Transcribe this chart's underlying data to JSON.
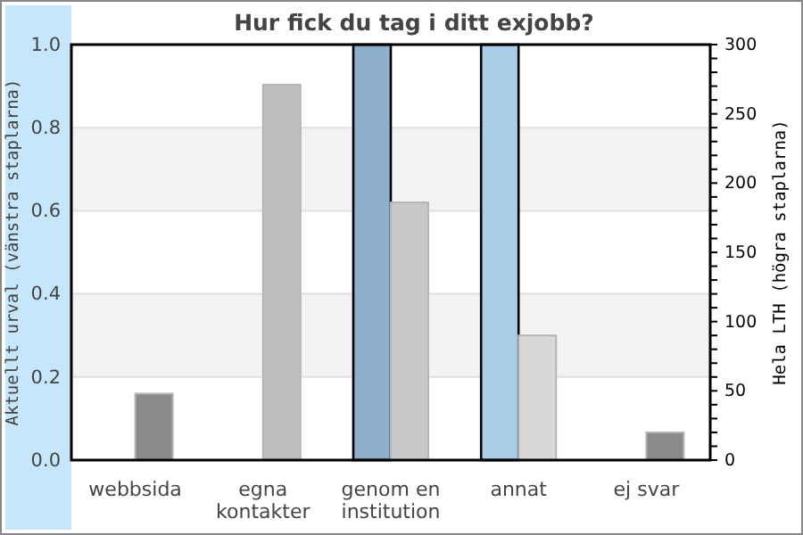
{
  "chart_data": {
    "type": "bar",
    "title": "Hur fick du tag i ditt exjobb?",
    "ylabel": "Aktuellt urval (vänstra staplarna)",
    "y2label": "Hela LTH (högra staplarna)",
    "categories": [
      "webbsida",
      "egna kontakter",
      "genom en institution",
      "annat",
      "ej svar"
    ],
    "series": [
      {
        "colors": [
          "#8fb0cc",
          "#8fb0cc",
          "#8fb0cc",
          "#aacde8",
          "#8fb0cc"
        ],
        "values": [
          0,
          0,
          1.0,
          1.0,
          0
        ]
      },
      {
        "axis": "y2",
        "colors": [
          "#8a8a8a",
          "#bdbdbd",
          "#c8c8c8",
          "#d8d8d8",
          "#8a8a8a"
        ],
        "values": [
          48,
          271,
          186,
          90,
          20
        ]
      }
    ],
    "ylim": [
      0,
      1.0
    ],
    "yticks": [
      {
        "value": 0,
        "label": "0.0"
      },
      0.2,
      0.4,
      0.6,
      0.8,
      {
        "value": 1,
        "label": "1.0"
      }
    ],
    "y2lim": [
      0,
      300
    ],
    "y2ticks": [
      0,
      {
        "value": 10,
        "label": null
      },
      {
        "value": 20,
        "label": null
      },
      {
        "value": 30,
        "label": null
      },
      {
        "value": 40,
        "label": null
      },
      50,
      {
        "value": 60,
        "label": null
      },
      {
        "value": 70,
        "label": null
      },
      {
        "value": 80,
        "label": null
      },
      {
        "value": 90,
        "label": null
      },
      100,
      {
        "value": 110,
        "label": null
      },
      {
        "value": 120,
        "label": null
      },
      {
        "value": 130,
        "label": null
      },
      {
        "value": 140,
        "label": null
      },
      150,
      {
        "value": 160,
        "label": null
      },
      {
        "value": 170,
        "label": null
      },
      {
        "value": 180,
        "label": null
      },
      {
        "value": 190,
        "label": null
      },
      200,
      {
        "value": 210,
        "label": null
      },
      {
        "value": 220,
        "label": null
      },
      {
        "value": 230,
        "label": null
      },
      {
        "value": 240,
        "label": null
      },
      250,
      {
        "value": 260,
        "label": null
      },
      {
        "value": 270,
        "label": null
      },
      {
        "value": 280,
        "label": null
      },
      {
        "value": 290,
        "label": null
      },
      300
    ],
    "grid": "y"
  }
}
